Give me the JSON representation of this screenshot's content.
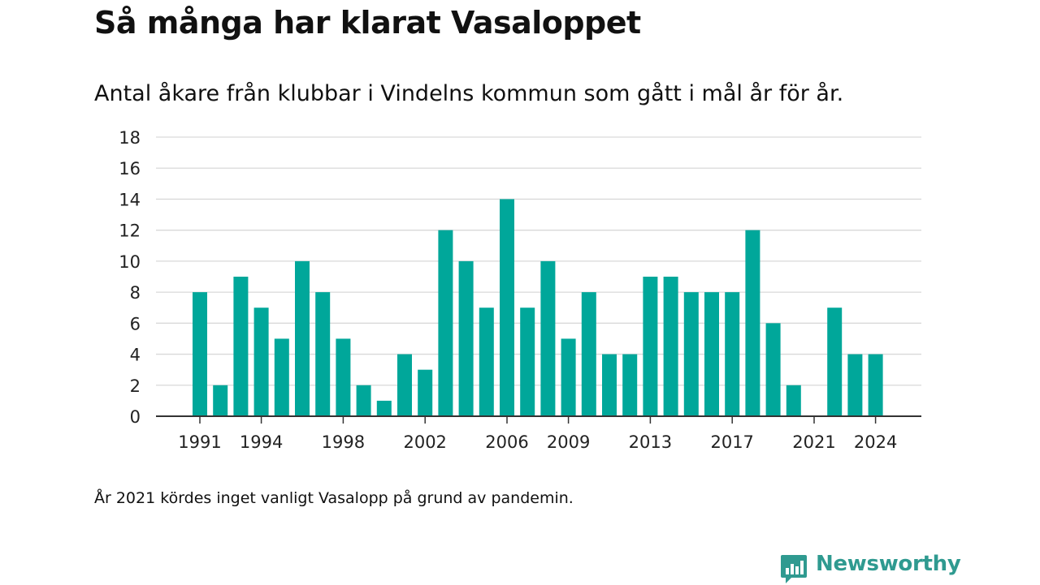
{
  "header": {
    "title": "Så många har klarat Vasaloppet",
    "subtitle": "Antal åkare från klubbar i Vindelns kommun som gått i mål år för år."
  },
  "footer": {
    "note": "År 2021 kördes inget vanligt Vasalopp på grund av pandemin.",
    "brand": "Newsworthy"
  },
  "colors": {
    "bar": "#00a79a",
    "brand": "#2f9a90",
    "grid": "#d9d9d9",
    "axis": "#333333"
  },
  "chart_data": {
    "type": "bar",
    "categories": [
      "1991",
      "1992",
      "1993",
      "1994",
      "1995",
      "1996",
      "1997",
      "1998",
      "1999",
      "2000",
      "2001",
      "2002",
      "2003",
      "2004",
      "2005",
      "2006",
      "2007",
      "2008",
      "2009",
      "2010",
      "2011",
      "2012",
      "2013",
      "2014",
      "2015",
      "2016",
      "2017",
      "2018",
      "2019",
      "2020",
      "2021",
      "2022",
      "2023",
      "2024"
    ],
    "values": [
      8,
      2,
      9,
      7,
      5,
      10,
      8,
      5,
      2,
      1,
      4,
      3,
      12,
      10,
      7,
      14,
      7,
      10,
      5,
      8,
      4,
      4,
      9,
      9,
      8,
      8,
      8,
      12,
      6,
      2,
      0,
      7,
      4,
      4
    ],
    "x_tick_labels": [
      "1991",
      "1994",
      "1998",
      "2002",
      "2006",
      "2009",
      "2013",
      "2017",
      "2021",
      "2024"
    ],
    "y_ticks": [
      0,
      2,
      4,
      6,
      8,
      10,
      12,
      14,
      16,
      18
    ],
    "ylim": [
      0,
      18
    ],
    "xlabel": "",
    "ylabel": "",
    "grid": true
  }
}
